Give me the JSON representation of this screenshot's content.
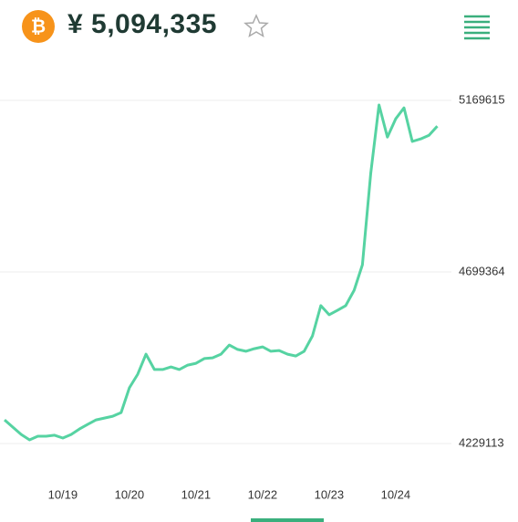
{
  "header": {
    "price": "¥ 5,094,335"
  },
  "chart_data": {
    "type": "line",
    "categories": [
      null,
      null,
      null,
      null,
      null,
      null,
      null,
      "10/19",
      null,
      null,
      null,
      null,
      null,
      null,
      null,
      "10/20",
      null,
      null,
      null,
      null,
      null,
      null,
      null,
      "10/21",
      null,
      null,
      null,
      null,
      null,
      null,
      null,
      "10/22",
      null,
      null,
      null,
      null,
      null,
      null,
      null,
      "10/23",
      null,
      null,
      null,
      null,
      null,
      null,
      null,
      "10/24",
      null,
      null,
      null,
      null,
      null
    ],
    "series": [
      {
        "color": "#56d3a2",
        "values": [
          4294000,
          4274000,
          4254000,
          4239000,
          4249000,
          4249000,
          4252000,
          4244000,
          4254000,
          4269000,
          4282000,
          4294000,
          4299000,
          4304000,
          4314000,
          4382000,
          4419000,
          4474000,
          4432000,
          4432000,
          4439000,
          4432000,
          4444000,
          4449000,
          4462000,
          4464000,
          4474000,
          4499000,
          4487000,
          4482000,
          4489000,
          4494000,
          4482000,
          4484000,
          4474000,
          4469000,
          4482000,
          4524000,
          4607000,
          4582000,
          4594000,
          4607000,
          4649000,
          4719000,
          4969000,
          5157000,
          5069000,
          5119000,
          5149000,
          5057000,
          5064000,
          5074000,
          5099000
        ]
      }
    ],
    "ylim": [
      4229113,
      5169615
    ],
    "yticks": [
      4229113,
      4699364,
      5169615
    ],
    "grid": true
  }
}
